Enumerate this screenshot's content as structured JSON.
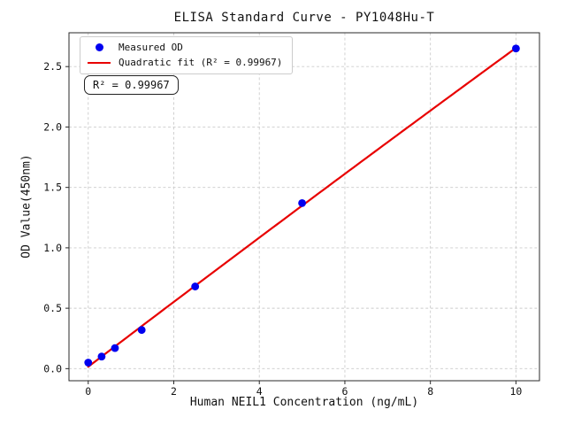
{
  "chart_data": {
    "type": "scatter",
    "title": "ELISA Standard Curve - PY1048Hu-T",
    "xlabel": "Human NEIL1 Concentration (ng/mL)",
    "ylabel": "OD Value(450nm)",
    "xlim": [
      -0.45,
      10.55
    ],
    "ylim": [
      -0.1,
      2.78
    ],
    "x_ticks": [
      0,
      2,
      4,
      6,
      8,
      10
    ],
    "x_tick_labels": [
      "0",
      "2",
      "4",
      "6",
      "8",
      "10"
    ],
    "y_ticks": [
      0,
      0.5,
      1,
      1.5,
      2,
      2.5
    ],
    "y_tick_labels": [
      "0.0",
      "0.5",
      "1.0",
      "1.5",
      "2.0",
      "2.5"
    ],
    "grid": true,
    "legend_position": "upper-left",
    "annotation": "R² = 0.99967",
    "series": [
      {
        "name": "Measured OD",
        "type": "scatter",
        "color": "#0000f0",
        "x": [
          0,
          0.313,
          0.625,
          1.25,
          2.5,
          5,
          10
        ],
        "y": [
          0.05,
          0.1,
          0.17,
          0.32,
          0.68,
          1.37,
          2.65
        ]
      },
      {
        "name": "Quadratic fit (R² = 0.99967)",
        "type": "line",
        "fit": "quadratic",
        "color": "#e80000",
        "x_range": [
          0,
          10
        ]
      }
    ],
    "colors": {
      "grid": "#cccccc",
      "axis": "#2a2a2a",
      "text": "#111111"
    }
  }
}
